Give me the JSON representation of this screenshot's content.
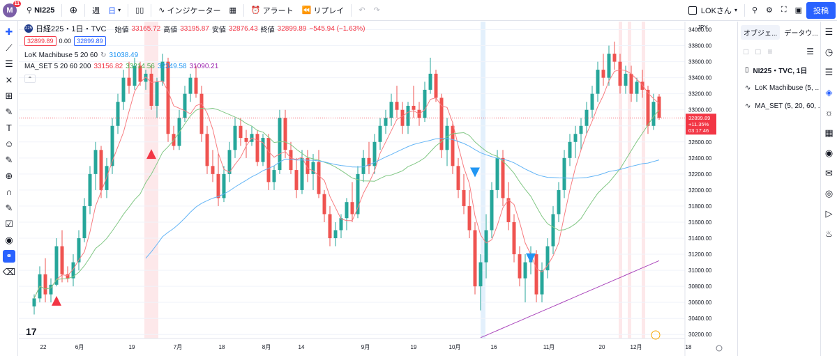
{
  "topbar": {
    "avatar_letter": "M",
    "avatar_badge": "11",
    "symbol": "NI225",
    "interval_week": "週",
    "interval_day": "日",
    "indicators": "インジケーター",
    "alert": "アラート",
    "replay": "リプレイ",
    "layout_name": "LOKさん",
    "publish": "投稿"
  },
  "legend": {
    "symbol_name": "日経225・1日・TVC",
    "ohlc": {
      "open_label": "始値",
      "open": "33165.72",
      "high_label": "高値",
      "high": "33195.87",
      "low_label": "安値",
      "low": "32876.43",
      "close_label": "終値",
      "close": "32899.89",
      "change": "−545.94 (−1.63%)"
    },
    "bid": "32899.89",
    "spread": "0.00",
    "ask": "32899.89",
    "ind1_name": "LoK Machibuse 5 20 60",
    "ind1_value": "31038.49",
    "ind2_name": "MA_SET 5 20 60 200",
    "ind2_values": [
      "33156.82",
      "33214.56",
      "32349.58",
      "31090.21"
    ]
  },
  "chart_data": {
    "type": "candlestick",
    "currency": "JPY",
    "y_ticks": [
      "34000.00",
      "33800.00",
      "33600.00",
      "33400.00",
      "33200.00",
      "33000.00",
      "32800.00",
      "32600.00",
      "32400.00",
      "32200.00",
      "32000.00",
      "31800.00",
      "31600.00",
      "31400.00",
      "31200.00",
      "31000.00",
      "30800.00",
      "30600.00",
      "30400.00",
      "30200.00"
    ],
    "ylim": [
      30150,
      34100
    ],
    "x_ticks": [
      "22",
      "6月",
      "19",
      "7月",
      "18",
      "8月",
      "14",
      "9月",
      "19",
      "10月",
      "16",
      "11月",
      "20",
      "12月",
      "18"
    ],
    "last_price": "32899.89",
    "last_change": "+11.35%",
    "countdown": "03:17:46",
    "ohlc_points": [
      [
        30550,
        30700,
        30450,
        30650
      ],
      [
        30650,
        31050,
        30600,
        30950
      ],
      [
        30950,
        31150,
        30600,
        30700
      ],
      [
        30700,
        30900,
        30600,
        30820
      ],
      [
        30820,
        31400,
        30800,
        31300
      ],
      [
        31300,
        31500,
        30850,
        30950
      ],
      [
        30950,
        31050,
        30850,
        30900
      ],
      [
        30900,
        31200,
        30800,
        31100
      ],
      [
        31100,
        31500,
        31000,
        31400
      ],
      [
        31400,
        31900,
        31350,
        31800
      ],
      [
        31800,
        32300,
        31700,
        32200
      ],
      [
        32200,
        32600,
        32000,
        32500
      ],
      [
        32500,
        32550,
        31900,
        32000
      ],
      [
        32000,
        32400,
        31900,
        32300
      ],
      [
        32300,
        32900,
        32200,
        32800
      ],
      [
        32800,
        33200,
        32700,
        33100
      ],
      [
        33100,
        33500,
        33000,
        33400
      ],
      [
        33400,
        33600,
        33200,
        33300
      ],
      [
        33300,
        33650,
        33250,
        33550
      ],
      [
        33550,
        33600,
        33300,
        33350
      ],
      [
        33350,
        33500,
        33250,
        33450
      ],
      [
        33450,
        33550,
        33000,
        33050
      ],
      [
        33050,
        33400,
        32900,
        33350
      ],
      [
        33350,
        33700,
        33300,
        33600
      ],
      [
        33600,
        33650,
        32600,
        32700
      ],
      [
        32700,
        32800,
        32500,
        32550
      ],
      [
        32550,
        33000,
        32500,
        32900
      ],
      [
        32900,
        33300,
        32850,
        33200
      ],
      [
        33200,
        33450,
        33100,
        33400
      ],
      [
        33400,
        33550,
        33150,
        33200
      ],
      [
        33200,
        33300,
        32600,
        32700
      ],
      [
        32700,
        32800,
        32200,
        32300
      ],
      [
        32300,
        32500,
        32100,
        32200
      ],
      [
        32200,
        32450,
        31800,
        31900
      ],
      [
        31900,
        32300,
        31850,
        32200
      ],
      [
        32200,
        32600,
        32100,
        32500
      ],
      [
        32500,
        32900,
        32400,
        32800
      ],
      [
        32800,
        32900,
        32550,
        32650
      ],
      [
        32650,
        32750,
        32400,
        32600
      ],
      [
        32600,
        32800,
        32550,
        32700
      ],
      [
        32700,
        32750,
        32300,
        32350
      ],
      [
        32350,
        32700,
        32300,
        32650
      ],
      [
        32650,
        32700,
        32000,
        32100
      ],
      [
        32100,
        32300,
        32000,
        32250
      ],
      [
        32250,
        33000,
        32200,
        32900
      ],
      [
        32900,
        33000,
        32400,
        32500
      ],
      [
        32500,
        32600,
        32200,
        32250
      ],
      [
        32250,
        32400,
        31900,
        32000
      ],
      [
        32000,
        32500,
        31950,
        32400
      ],
      [
        32400,
        32500,
        32100,
        32200
      ],
      [
        32200,
        32450,
        32000,
        32350
      ],
      [
        32350,
        32500,
        31900,
        31950
      ],
      [
        31950,
        32000,
        31600,
        31700
      ],
      [
        31700,
        31800,
        31300,
        31400
      ],
      [
        31400,
        31600,
        31300,
        31500
      ],
      [
        31500,
        31700,
        31400,
        31650
      ],
      [
        31650,
        31900,
        31500,
        31850
      ],
      [
        31850,
        32100,
        31600,
        31700
      ],
      [
        31700,
        32300,
        31650,
        32200
      ],
      [
        32200,
        32500,
        32100,
        32400
      ],
      [
        32400,
        32600,
        32200,
        32300
      ],
      [
        32300,
        32700,
        32200,
        32600
      ],
      [
        32600,
        32900,
        32500,
        32800
      ],
      [
        32800,
        33000,
        32700,
        32900
      ],
      [
        32900,
        33200,
        32800,
        33100
      ],
      [
        33100,
        33300,
        32900,
        33000
      ],
      [
        33000,
        33100,
        32700,
        32800
      ],
      [
        32800,
        33100,
        32700,
        33050
      ],
      [
        33050,
        33300,
        32900,
        33000
      ],
      [
        33000,
        33100,
        32800,
        32900
      ],
      [
        32900,
        33350,
        32850,
        33250
      ],
      [
        33250,
        33650,
        33200,
        33450
      ],
      [
        33450,
        33500,
        33100,
        33150
      ],
      [
        33150,
        33200,
        32400,
        32500
      ],
      [
        32500,
        32900,
        32300,
        32800
      ],
      [
        32800,
        32850,
        32200,
        32300
      ],
      [
        32300,
        32400,
        31900,
        32000
      ],
      [
        32000,
        32200,
        31700,
        31800
      ],
      [
        31800,
        32000,
        31400,
        31500
      ],
      [
        31500,
        31600,
        30700,
        30800
      ],
      [
        30800,
        31200,
        30500,
        31100
      ],
      [
        31100,
        31700,
        30900,
        31500
      ],
      [
        31500,
        32100,
        31400,
        32000
      ],
      [
        32000,
        32500,
        31900,
        32400
      ],
      [
        32400,
        32500,
        31800,
        31900
      ],
      [
        31900,
        32100,
        31500,
        31600
      ],
      [
        31600,
        31700,
        31100,
        31200
      ],
      [
        31200,
        31300,
        30800,
        30900
      ],
      [
        30900,
        31200,
        30600,
        31100
      ],
      [
        31100,
        31300,
        30950,
        31200
      ],
      [
        31200,
        31250,
        30600,
        30700
      ],
      [
        30700,
        31100,
        30600,
        31000
      ],
      [
        31000,
        31400,
        30900,
        31300
      ],
      [
        31300,
        31800,
        31200,
        31700
      ],
      [
        31700,
        32100,
        31600,
        32000
      ],
      [
        32000,
        32500,
        31900,
        32400
      ],
      [
        32400,
        32700,
        32300,
        32600
      ],
      [
        32600,
        32800,
        32400,
        32700
      ],
      [
        32700,
        32900,
        32500,
        32800
      ],
      [
        32800,
        33100,
        32700,
        33000
      ],
      [
        33000,
        33300,
        32900,
        33200
      ],
      [
        33200,
        33600,
        33100,
        33500
      ],
      [
        33500,
        33700,
        33300,
        33400
      ],
      [
        33400,
        33800,
        33300,
        33700
      ],
      [
        33700,
        33850,
        33500,
        33600
      ],
      [
        33600,
        33700,
        33200,
        33300
      ],
      [
        33300,
        33550,
        33200,
        33450
      ],
      [
        33450,
        33550,
        33100,
        33200
      ],
      [
        33200,
        33400,
        33100,
        33350
      ],
      [
        33350,
        33500,
        33150,
        33250
      ],
      [
        33250,
        33300,
        32700,
        32800
      ],
      [
        32800,
        33200,
        32750,
        33100
      ],
      [
        33165.72,
        33195.87,
        32876.43,
        32899.89
      ]
    ]
  },
  "right_panel": {
    "tab_objects": "オブジェ...",
    "tab_data": "データウ...",
    "items": [
      "NI225・TVC, 1日",
      "LoK Machibuse (5, ...",
      "MA_SET (5, 20, 60, ..."
    ]
  },
  "colors": {
    "up": "#26a69a",
    "down": "#ef5350",
    "ma5": "#f23645",
    "ma20": "#4caf50",
    "ma60": "#2196f3",
    "ma200": "#9c27b0",
    "accent": "#2962ff"
  }
}
